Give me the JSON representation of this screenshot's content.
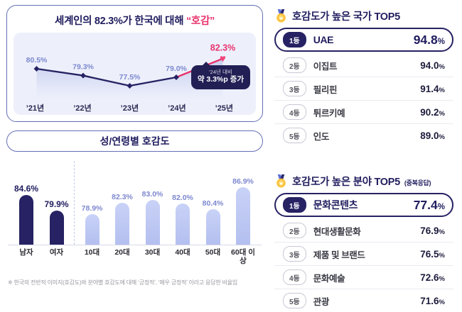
{
  "unit": "%",
  "trend": {
    "title_prefix": "세계인의 82.3%가 한국에 대해 ",
    "title_highlight": "“호감”",
    "callout_line1": "’24년 대비",
    "callout_line2": "약 3.3%p 증가"
  },
  "demographics": {
    "title": "성/연령별 호감도"
  },
  "country_top5": {
    "title": "호감도가 높은 국가 TOP5",
    "rows": [
      {
        "rank": "1등",
        "name": "UAE",
        "value": "94.8"
      },
      {
        "rank": "2등",
        "name": "이집트",
        "value": "94.0"
      },
      {
        "rank": "3등",
        "name": "필리핀",
        "value": "91.4"
      },
      {
        "rank": "4등",
        "name": "튀르키예",
        "value": "90.2"
      },
      {
        "rank": "5등",
        "name": "인도",
        "value": "89.0"
      }
    ]
  },
  "sector_top5": {
    "title": "호감도가 높은 분야 TOP5",
    "title_suffix": "(중복응답)",
    "rows": [
      {
        "rank": "1등",
        "name": "문화콘텐츠",
        "value": "77.4"
      },
      {
        "rank": "2등",
        "name": "현대생활문화",
        "value": "76.9"
      },
      {
        "rank": "3등",
        "name": "제품 및 브랜드",
        "value": "76.5"
      },
      {
        "rank": "4등",
        "name": "문화예술",
        "value": "72.6"
      },
      {
        "rank": "5등",
        "name": "관광",
        "value": "71.6"
      }
    ]
  },
  "footnote": "※ 한국의 전반적 이미지(호감도)와 분야별 호감도에 대해 ‘긍정적’, ‘매우 긍정적’ 이라고 응답한 비율임",
  "chart_data": [
    {
      "id": "global-favorability-trend",
      "type": "line",
      "title": "세계인의 82.3%가 한국에 대해 “호감”",
      "categories": [
        "’21년",
        "’22년",
        "’23년",
        "’24년",
        "’25년"
      ],
      "values": [
        80.5,
        79.3,
        77.5,
        79.0,
        82.3
      ],
      "ylim": [
        76,
        84
      ],
      "highlight_index": 4,
      "annotation": "’24년 대비 약 3.3%p 증가",
      "legend": "none",
      "grid": false
    },
    {
      "id": "favorability-by-gender-age",
      "type": "bar",
      "title": "성/연령별 호감도",
      "categories": [
        "남자",
        "여자",
        "10대",
        "20대",
        "30대",
        "40대",
        "50대",
        "60대 이상"
      ],
      "values": [
        84.6,
        79.9,
        78.9,
        82.3,
        83.0,
        82.0,
        80.4,
        86.9
      ],
      "ylim": [
        70,
        92
      ],
      "emphasis_count": 2,
      "legend": "none",
      "grid": false
    }
  ]
}
